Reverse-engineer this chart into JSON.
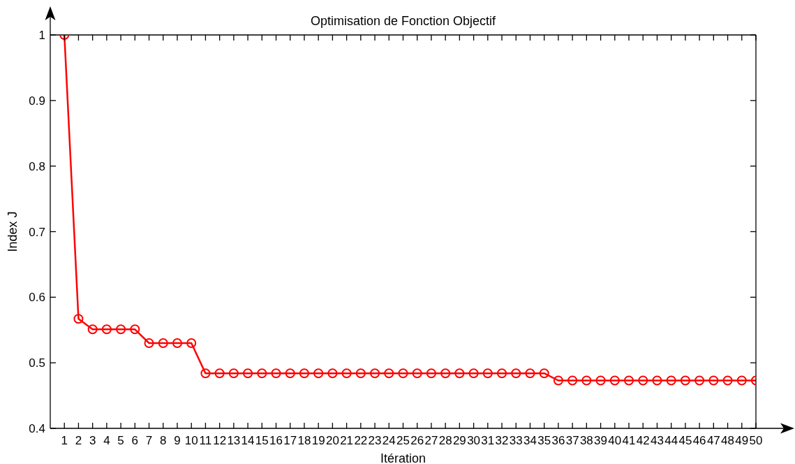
{
  "chart_data": {
    "type": "line",
    "title": "Optimisation de Fonction Objectif",
    "xlabel": "Itération",
    "ylabel": "Index J",
    "x": [
      1,
      2,
      3,
      4,
      5,
      6,
      7,
      8,
      9,
      10,
      11,
      12,
      13,
      14,
      15,
      16,
      17,
      18,
      19,
      20,
      21,
      22,
      23,
      24,
      25,
      26,
      27,
      28,
      29,
      30,
      31,
      32,
      33,
      34,
      35,
      36,
      37,
      38,
      39,
      40,
      41,
      42,
      43,
      44,
      45,
      46,
      47,
      48,
      49,
      50
    ],
    "values": [
      1.0,
      0.567,
      0.551,
      0.551,
      0.551,
      0.551,
      0.53,
      0.53,
      0.53,
      0.53,
      0.484,
      0.484,
      0.484,
      0.484,
      0.484,
      0.484,
      0.484,
      0.484,
      0.484,
      0.484,
      0.484,
      0.484,
      0.484,
      0.484,
      0.484,
      0.484,
      0.484,
      0.484,
      0.484,
      0.484,
      0.484,
      0.484,
      0.484,
      0.484,
      0.484,
      0.473,
      0.473,
      0.473,
      0.473,
      0.473,
      0.473,
      0.473,
      0.473,
      0.473,
      0.473,
      0.473,
      0.473,
      0.473,
      0.473,
      0.473
    ],
    "color": "#ff0000",
    "marker": "circle",
    "line_style": "solid",
    "xlim": [
      0,
      50
    ],
    "xticks": [
      1,
      2,
      3,
      4,
      5,
      6,
      7,
      8,
      9,
      10,
      11,
      12,
      13,
      14,
      15,
      16,
      17,
      18,
      19,
      20,
      21,
      22,
      23,
      24,
      25,
      26,
      27,
      28,
      29,
      30,
      31,
      32,
      33,
      34,
      35,
      36,
      37,
      38,
      39,
      40,
      41,
      42,
      43,
      44,
      45,
      46,
      47,
      48,
      49,
      50
    ],
    "ylim": [
      0.4,
      1
    ],
    "yticks": [
      0.4,
      0.5,
      0.6,
      0.7,
      0.8,
      0.9,
      1
    ]
  }
}
